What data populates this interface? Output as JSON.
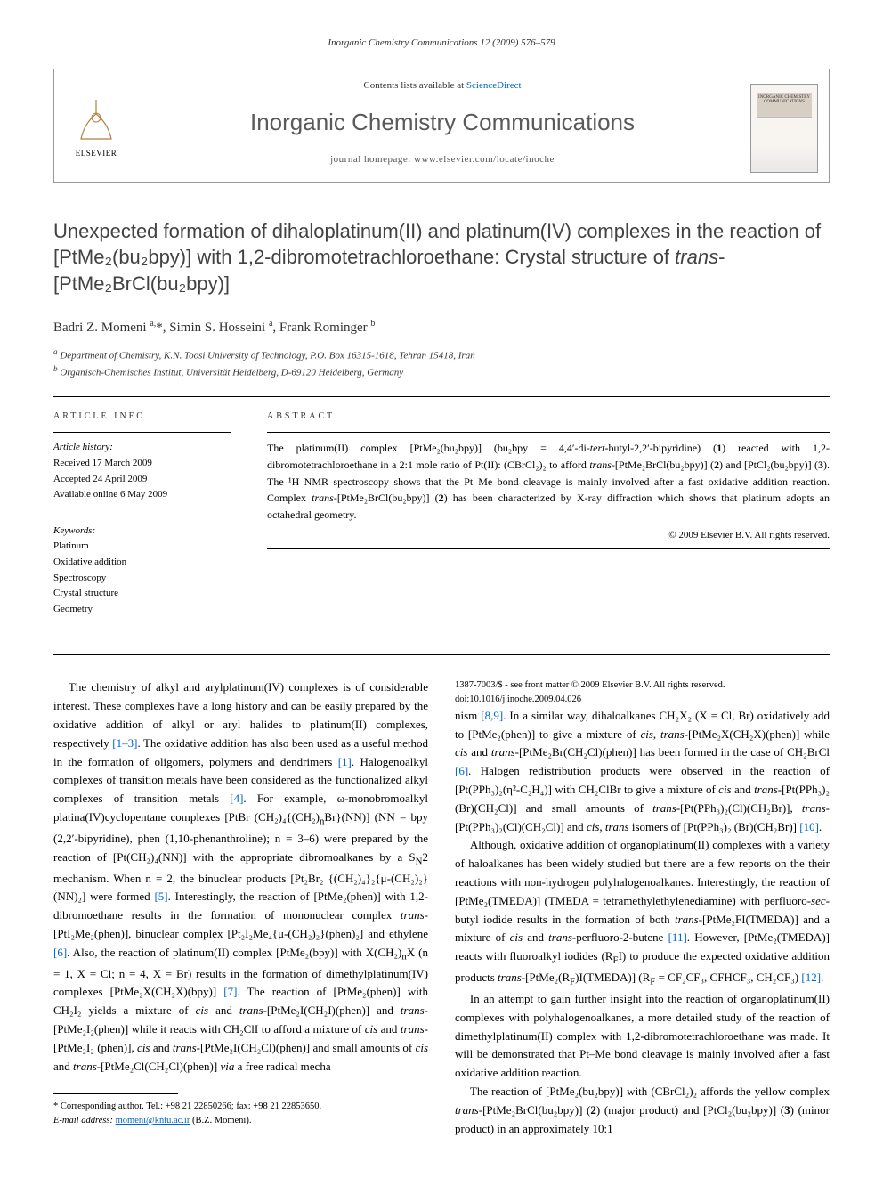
{
  "running_header": "Inorganic Chemistry Communications 12 (2009) 576–579",
  "journal_box": {
    "contents_line_pre": "Contents lists available at ",
    "contents_link": "ScienceDirect",
    "journal_name": "Inorganic Chemistry Communications",
    "homepage_label": "journal homepage: ",
    "homepage_url": "www.elsevier.com/locate/inoche",
    "publisher_name": "ELSEVIER",
    "cover_title": "INORGANIC CHEMISTRY COMMUNICATIONS"
  },
  "title_html": "Unexpected formation of dihaloplatinum(II) and platinum(IV) complexes in the reaction of [PtMe₂(bu₂bpy)] with 1,2-dibromotetrachloroethane: Crystal structure of <span class=\"ital\">trans</span>-[PtMe₂BrCl(bu₂bpy)]",
  "authors_html": "Badri Z. Momeni <sup>a,</sup>*, Simin S. Hosseini <sup>a</sup>, Frank Rominger <sup>b</sup>",
  "affiliations": {
    "a": "Department of Chemistry, K.N. Toosi University of Technology, P.O. Box 16315-1618, Tehran 15418, Iran",
    "b": "Organisch-Chemisches Institut, Universität Heidelberg, D-69120 Heidelberg, Germany"
  },
  "article_info": {
    "heading": "ARTICLE INFO",
    "history_label": "Article history:",
    "received": "Received 17 March 2009",
    "accepted": "Accepted 24 April 2009",
    "online": "Available online 6 May 2009",
    "keywords_label": "Keywords:",
    "keywords": [
      "Platinum",
      "Oxidative addition",
      "Spectroscopy",
      "Crystal structure",
      "Geometry"
    ]
  },
  "abstract": {
    "heading": "ABSTRACT",
    "body_html": "The platinum(II) complex [PtMe₂(bu₂bpy)] (bu₂bpy = 4,4′-di-<i>tert</i>-butyl-2,2′-bipyridine) (<b>1</b>) reacted with 1,2-dibromotetrachloroethane in a 2:1 mole ratio of Pt(II): (CBrCl₂)₂ to afford <i>trans</i>-[PtMe₂BrCl(bu₂bpy)] (<b>2</b>) and [PtCl₂(bu₂bpy)] (<b>3</b>). The ¹H NMR spectroscopy shows that the Pt–Me bond cleavage is mainly involved after a fast oxidative addition reaction. Complex <i>trans</i>-[PtMe₂BrCl(bu₂bpy)] (<b>2</b>) has been characterized by X-ray diffraction which shows that platinum adopts an octahedral geometry.",
    "copyright": "© 2009 Elsevier B.V. All rights reserved."
  },
  "body": {
    "p1_html": "The chemistry of alkyl and arylplatinum(IV) complexes is of considerable interest. These complexes have a long history and can be easily prepared by the oxidative addition of alkyl or aryl halides to platinum(II) complexes, respectively <span class=\"ref\">[1–3]</span>. The oxidative addition has also been used as a useful method in the formation of oligomers, polymers and dendrimers <span class=\"ref\">[1]</span>. Halogenoalkyl complexes of transition metals have been considered as the functionalized alkyl complexes of transition metals <span class=\"ref\">[4]</span>. For example, ω-monobromoalkyl platina(IV)cyclopentane complexes [PtBr (CH₂)₄{(CH₂)<sub>n</sub>Br}(NN)] (NN = bpy (2,2′-bipyridine), phen (1,10-phenanthroline); n = 3–6) were prepared by the reaction of [Pt(CH₂)₄(NN)] with the appropriate dibromoalkanes by a S<sub>N</sub>2 mechanism. When n = 2, the binuclear products [Pt₂Br₂ {(CH₂)₄}₂{μ-(CH₂)₂}(NN)₂] were formed <span class=\"ref\">[5]</span>. Interestingly, the reaction of [PtMe₂(phen)] with 1,2-dibromoethane results in the formation of mononuclear complex <i>trans</i>-[PtI₂Me₂(phen)], binuclear complex [Pt₂I₂Me₄{μ-(CH₂)₂}(phen)₂] and ethylene <span class=\"ref\">[6]</span>. Also, the reaction of platinum(II) complex [PtMe₂(bpy)] with X(CH₂)<sub>n</sub>X (n = 1, X = Cl; n = 4, X = Br) results in the formation of dimethylplatinum(IV) complexes [PtMe₂X(CH₂X)(bpy)] <span class=\"ref\">[7]</span>. The reaction of [PtMe₂(phen)] with CH₂I₂ yields a mixture of <i>cis</i> and <i>trans</i>-[PtMe₂I(CH₂I)(phen)] and <i>trans</i>-[PtMe₂I₂(phen)] while it reacts with CH₂ClI to afford a mixture of <i>cis</i> and <i>trans</i>-[PtMe₂I₂ (phen)], <i>cis</i> and <i>trans</i>-[PtMe₂I(CH₂Cl)(phen)] and small amounts of <i>cis</i> and <i>trans</i>-[PtMe₂Cl(CH₂Cl)(phen)] <i>via</i> a free radical mecha",
    "p1b_html": "nism <span class=\"ref\">[8,9]</span>. In a similar way, dihaloalkanes CH₂X₂ (X = Cl, Br) oxidatively add to [PtMe₂(phen)] to give a mixture of <i>cis</i>, <i>trans</i>-[PtMe₂X(CH₂X)(phen)] while <i>cis</i> and <i>trans</i>-[PtMe₂Br(CH₂Cl)(phen)] has been formed in the case of CH₂BrCl <span class=\"ref\">[6]</span>. Halogen redistribution products were observed in the reaction of [Pt(PPh₃)₂(η²-C₂H₄)] with CH₂ClBr to give a mixture of <i>cis</i> and <i>trans</i>-[Pt(PPh₃)₂ (Br)(CH₂Cl)] and small amounts of <i>trans</i>-[Pt(PPh₃)₂(Cl)(CH₂Br)], <i>trans</i>-[Pt(PPh₃)₂(Cl)(CH₂Cl)] and <i>cis</i>, <i>trans</i> isomers of [Pt(PPh₃)₂ (Br)(CH₂Br)] <span class=\"ref\">[10]</span>.",
    "p2_html": "Although, oxidative addition of organoplatinum(II) complexes with a variety of haloalkanes has been widely studied but there are a few reports on the their reactions with non-hydrogen polyhalogenoalkanes. Interestingly, the reaction of [PtMe₂(TMEDA)] (TMEDA = tetramethylethylenediamine) with perfluoro-<i>sec</i>-butyl iodide results in the formation of both <i>trans</i>-[PtMe₂FI(TMEDA)] and a mixture of <i>cis</i> and <i>trans</i>-perfluoro-2-butene <span class=\"ref\">[11]</span>. However, [PtMe₂(TMEDA)] reacts with fluoroalkyl iodides (R<sub>F</sub>I) to produce the expected oxidative addition products <i>trans</i>-[PtMe₂(R<sub>F</sub>)I(TMEDA)] (R<sub>F</sub> = CF₂CF₃, CFHCF₃, CH₂CF₃) <span class=\"ref\">[12]</span>.",
    "p3_html": "In an attempt to gain further insight into the reaction of organoplatinum(II) complexes with polyhalogenoalkanes, a more detailed study of the reaction of dimethylplatinum(II) complex with 1,2-dibromotetrachloroethane was made. It will be demonstrated that Pt–Me bond cleavage is mainly involved after a fast oxidative addition reaction.",
    "p4_html": "The reaction of [PtMe₂(bu₂bpy)] with (CBrCl₂)₂ affords the yellow complex <i>trans</i>-[PtMe₂BrCl(bu₂bpy)] (<b>2</b>) (major product) and [PtCl₂(bu₂bpy)] (<b>3</b>) (minor product) in an approximately 10:1"
  },
  "footnote": {
    "corr_label": "* Corresponding author. Tel.: +98 21 22850266; fax: +98 21 22853650.",
    "email_label": "E-mail address:",
    "email": "momeni@kntu.ac.ir",
    "email_who": "(B.Z. Momeni)."
  },
  "doi": {
    "line1": "1387-7003/$ - see front matter © 2009 Elsevier B.V. All rights reserved.",
    "line2": "doi:10.1016/j.inoche.2009.04.026"
  },
  "colors": {
    "link": "#0066cc",
    "rule": "#000000",
    "headgrey": "#5a5a5a"
  }
}
